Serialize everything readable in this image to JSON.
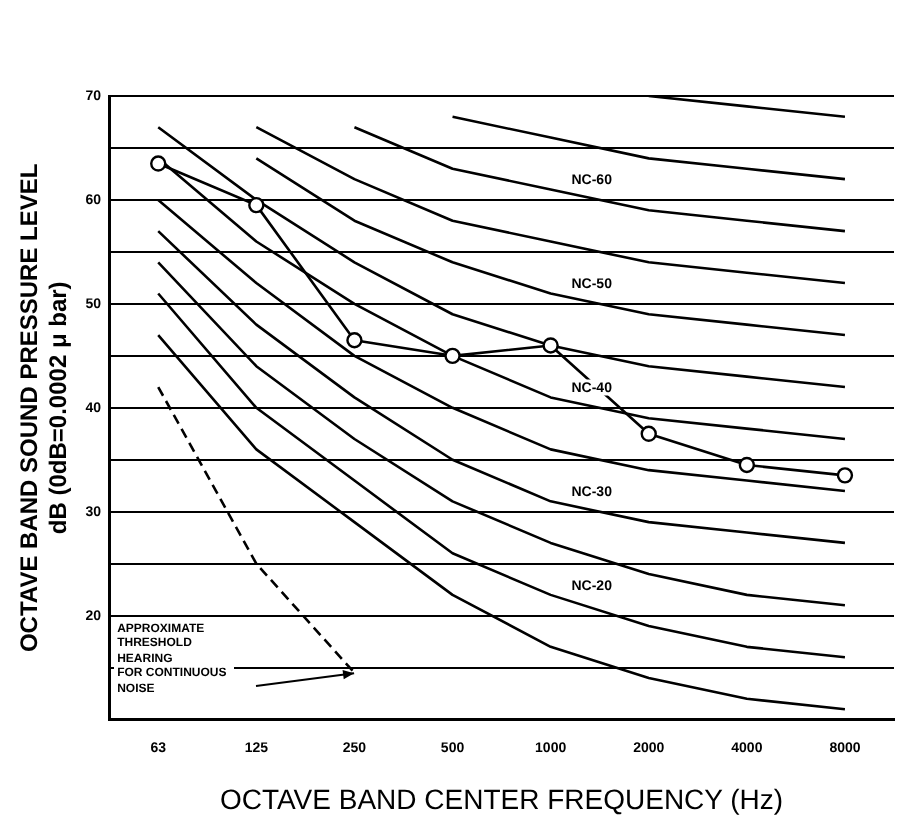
{
  "chart_data": {
    "type": "line",
    "xlabel": "OCTAVE BAND CENTER FREQUENCY (Hz)",
    "ylabel": "OCTAVE BAND SOUND PRESSURE LEVEL\ndB (0dB=0.0002 μ bar)",
    "categories": [
      "63",
      "125",
      "250",
      "500",
      "1000",
      "2000",
      "4000",
      "8000"
    ],
    "ylim": [
      10,
      70
    ],
    "yticks": [
      {
        "value": 10,
        "label": null
      },
      {
        "value": 15,
        "label": null
      },
      20,
      {
        "value": 25,
        "label": null
      },
      30,
      {
        "value": 35,
        "label": null
      },
      40,
      {
        "value": 45,
        "label": null
      },
      50,
      {
        "value": 55,
        "label": null
      },
      60,
      {
        "value": 65,
        "label": null
      },
      70
    ],
    "grid": "y",
    "legend": false,
    "series": [
      {
        "color": "#000000",
        "marker": "circle",
        "values": [
          63.5,
          59.5,
          46.5,
          45,
          46,
          37.5,
          34.5,
          33.5
        ]
      },
      {
        "color": "#000000",
        "values": [
          47,
          36,
          29,
          22,
          17,
          14,
          12,
          11
        ]
      },
      {
        "name": "NC-20",
        "color": "#000000",
        "values": [
          51,
          40,
          33,
          26,
          22,
          19,
          17,
          16
        ]
      },
      {
        "color": "#000000",
        "values": [
          54,
          44,
          37,
          31,
          27,
          24,
          22,
          21
        ]
      },
      {
        "name": "NC-30",
        "color": "#000000",
        "values": [
          57,
          48,
          41,
          35,
          31,
          29,
          28,
          27
        ]
      },
      {
        "color": "#000000",
        "values": [
          60,
          52,
          45,
          40,
          36,
          34,
          33,
          32
        ]
      },
      {
        "name": "NC-40",
        "color": "#000000",
        "values": [
          64,
          56,
          50,
          45,
          41,
          39,
          38,
          37
        ]
      },
      {
        "color": "#000000",
        "values": [
          67,
          60,
          54,
          49,
          46,
          44,
          43,
          42
        ]
      },
      {
        "name": "NC-50",
        "color": "#000000",
        "values": [
          null,
          64,
          58,
          54,
          51,
          49,
          48,
          47
        ]
      },
      {
        "color": "#000000",
        "values": [
          null,
          67,
          62,
          58,
          56,
          54,
          53,
          52
        ]
      },
      {
        "name": "NC-60",
        "color": "#000000",
        "values": [
          null,
          null,
          67,
          63,
          61,
          59,
          58,
          57
        ]
      },
      {
        "color": "#000000",
        "values": [
          null,
          null,
          null,
          68,
          66,
          64,
          63,
          62
        ]
      },
      {
        "color": "#000000",
        "values": [
          null,
          null,
          null,
          null,
          null,
          70,
          69,
          68
        ]
      },
      {
        "color": "#000000",
        "line_style": "dashed",
        "values": [
          42,
          25,
          14.5,
          null,
          null,
          null,
          null,
          null
        ]
      }
    ],
    "annotations": [
      "APPROXIMATE\nTHRESHOLD\nHEARING\nFOR CONTINUOUS\nNOISE"
    ]
  }
}
